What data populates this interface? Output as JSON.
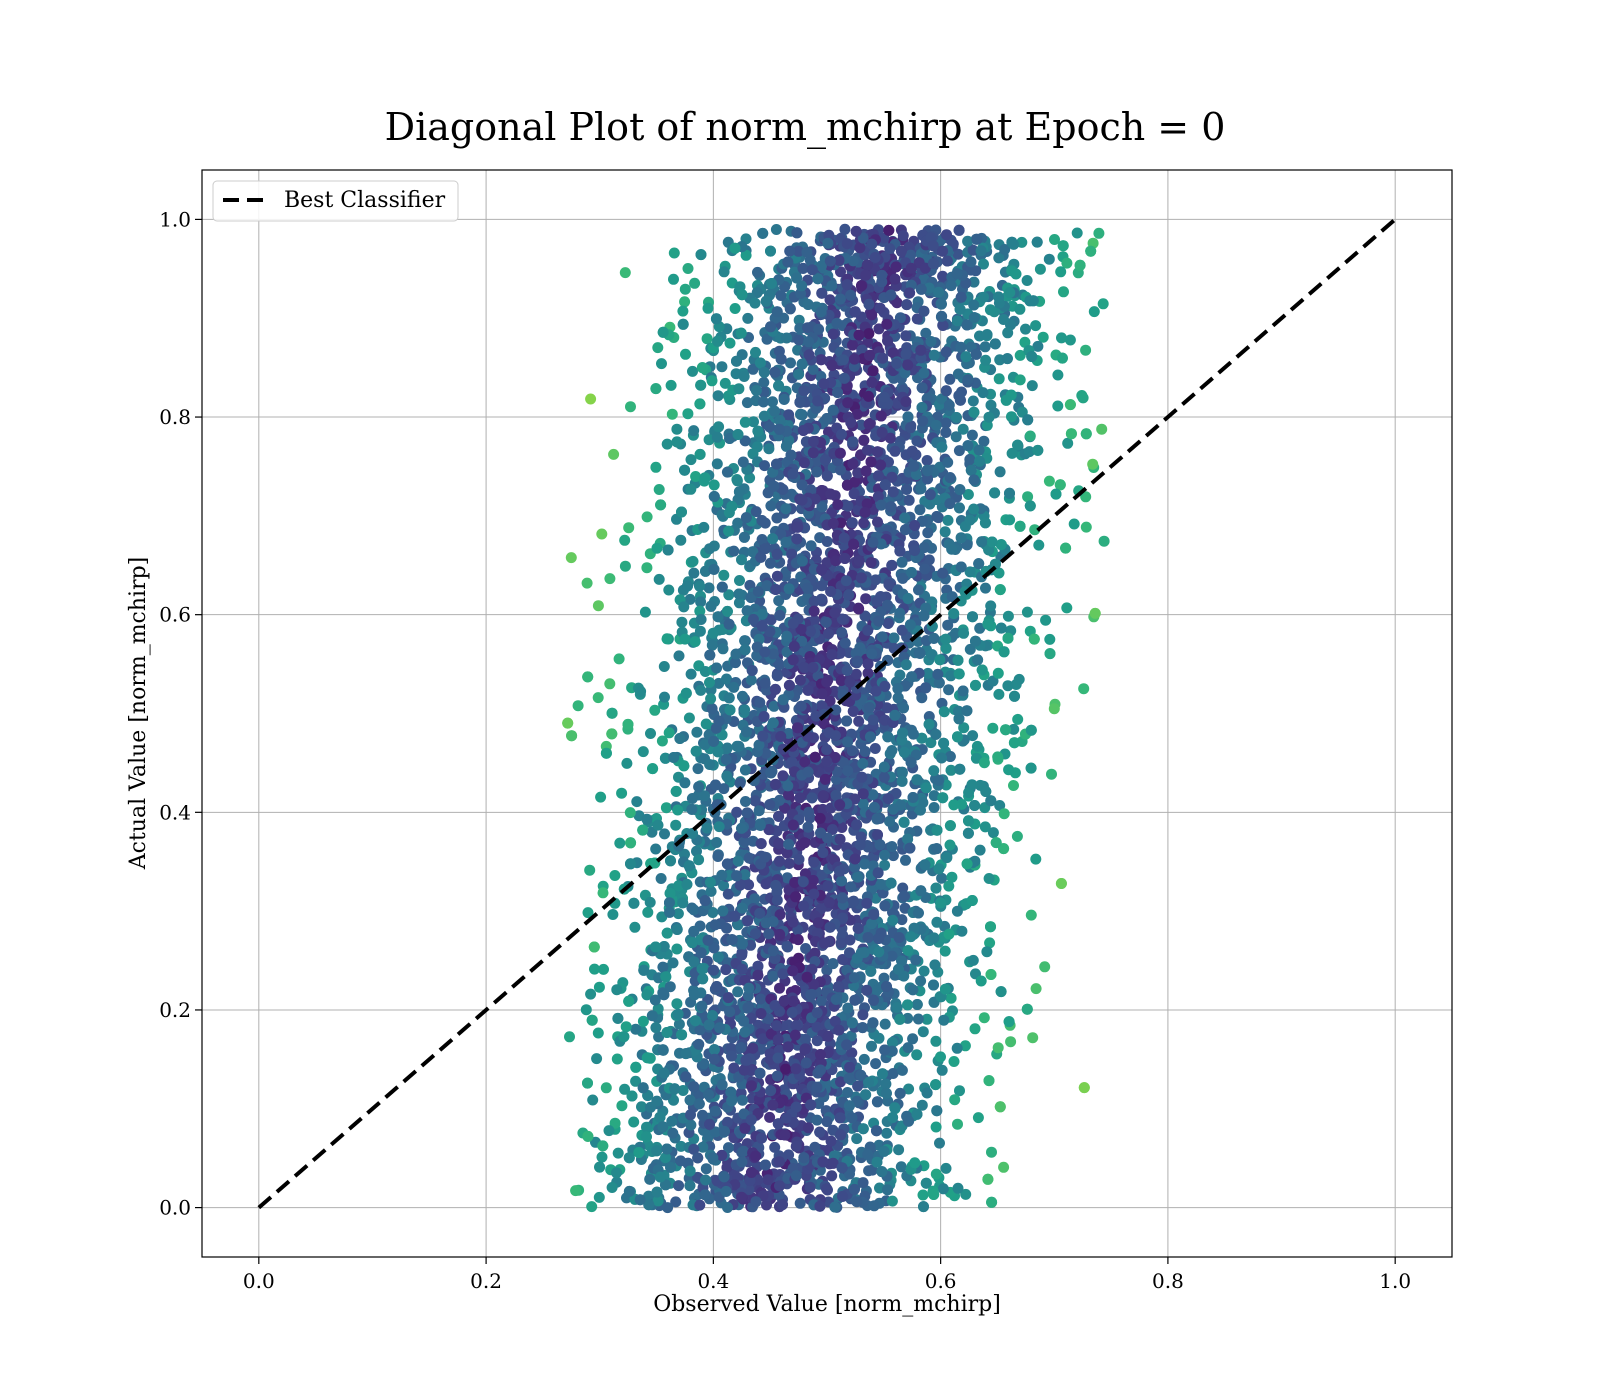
{
  "chart_data": {
    "type": "scatter",
    "title": "Diagonal Plot of norm_mchirp at Epoch = 0",
    "xlabel": "Observed Value [norm_mchirp]",
    "ylabel": "Actual Value [norm_mchirp]",
    "xlim": [
      -0.05,
      1.05
    ],
    "ylim": [
      -0.05,
      1.05
    ],
    "xticks": [
      "0.0",
      "0.2",
      "0.4",
      "0.6",
      "0.8",
      "1.0"
    ],
    "yticks": [
      "0.0",
      "0.2",
      "0.4",
      "0.6",
      "0.8",
      "1.0"
    ],
    "grid": true,
    "legend_position": "top-left",
    "colormap": "viridis",
    "series": [
      {
        "name": "Best Classifier",
        "kind": "line",
        "style": "dashed",
        "color": "#000000",
        "x": [
          0.0,
          1.0
        ],
        "y": [
          0.0,
          1.0
        ]
      },
      {
        "kind": "scatter",
        "point_count_estimate": 20000,
        "x_range": [
          0.27,
          0.75
        ],
        "y_range": [
          0.0,
          0.99
        ],
        "x_center": 0.5,
        "x_spread": 0.08,
        "x_center_slope_with_y": 0.1,
        "color_low": "#440154",
        "color_high": "#b5de2b"
      }
    ]
  }
}
